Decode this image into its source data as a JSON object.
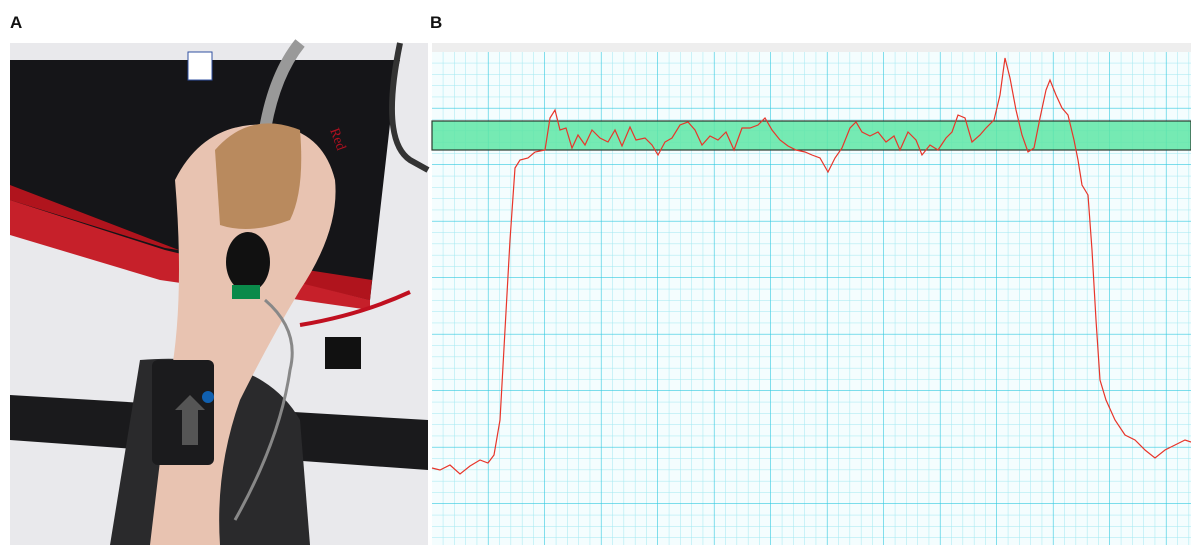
{
  "panels": [
    {
      "label": "A"
    },
    {
      "label": "B"
    }
  ],
  "photo": {
    "book_text": "Red"
  }
}
